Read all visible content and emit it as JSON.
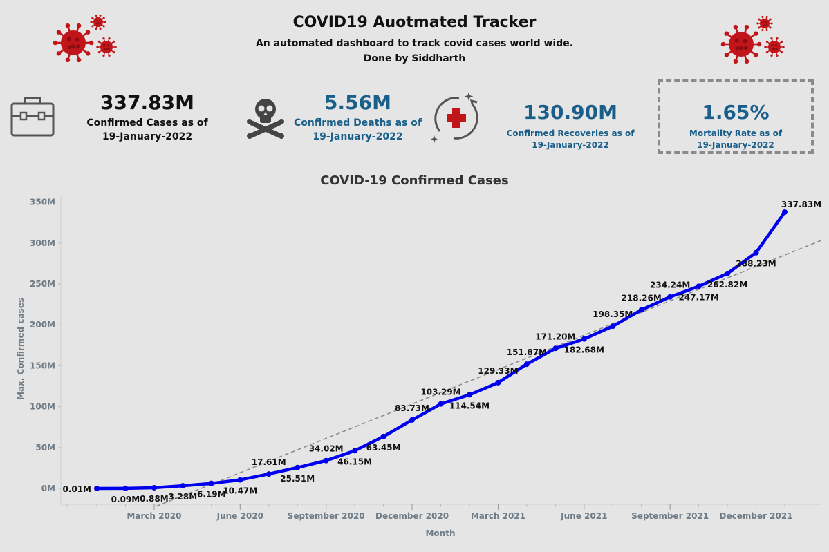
{
  "header": {
    "title": "COVID19 Auotmated Tracker",
    "subtitle": "An automated dashboard to track covid cases world wide.",
    "author": "Done by Siddharth"
  },
  "kpis": {
    "confirmed": {
      "value": "337.83M",
      "label_line1": "Confirmed Cases as of",
      "label_line2": "19-January-2022",
      "icon": "briefcase-icon"
    },
    "deaths": {
      "value": "5.56M",
      "label_line1": "Confirmed Deaths as of",
      "label_line2": "19-January-2022",
      "icon": "skull-crossbones-icon"
    },
    "recoveries": {
      "value": "130.90M",
      "label_line1": "Confirmed Recoveries as of",
      "label_line2": "19-January-2022",
      "icon": "medical-cross-icon"
    },
    "mortality": {
      "value": "1.65%",
      "label_line1": "Mortality Rate as of",
      "label_line2": "19-January-2022"
    }
  },
  "colors": {
    "line": "#0000ee",
    "trend": "#8c8c8c",
    "kpi_blue": "#1a5f8a",
    "virus": "#c0161a"
  },
  "chart_data": {
    "type": "line",
    "title": "COVID-19 Confirmed Cases",
    "xlabel": "Month",
    "ylabel": "Max. Confirmed cases",
    "ylim": [
      0,
      350
    ],
    "y_unit": "M",
    "yticks": [
      "0M",
      "50M",
      "100M",
      "150M",
      "200M",
      "250M",
      "300M",
      "350M"
    ],
    "xticks": [
      "March 2020",
      "June 2020",
      "September 2020",
      "December 2020",
      "March 2021",
      "June 2021",
      "September 2021",
      "December 2021"
    ],
    "trend_line": true,
    "grid": false,
    "series": [
      {
        "x": [
          "January 2020",
          "February 2020",
          "March 2020",
          "April 2020",
          "May 2020",
          "June 2020",
          "July 2020",
          "August 2020",
          "September 2020",
          "October 2020",
          "November 2020",
          "December 2020",
          "January 2021",
          "February 2021",
          "March 2021",
          "April 2021",
          "May 2021",
          "June 2021",
          "July 2021",
          "August 2021",
          "September 2021",
          "October 2021",
          "November 2021",
          "December 2021",
          "January 2022"
        ],
        "values": [
          0.01,
          0.09,
          0.88,
          3.28,
          6.19,
          10.47,
          17.61,
          25.51,
          34.02,
          46.15,
          63.45,
          83.73,
          103.29,
          114.54,
          129.33,
          151.87,
          171.2,
          182.68,
          198.35,
          218.26,
          234.24,
          247.17,
          262.82,
          288.23,
          337.83
        ],
        "labels": [
          "0.01M",
          "0.09M",
          "0.88M",
          "3.28M",
          "6.19M",
          "10.47M",
          "17.61M",
          "25.51M",
          "34.02M",
          "46.15M",
          "63.45M",
          "83.73M",
          "103.29M",
          "114.54M",
          "129.33M",
          "151.87M",
          "171.20M",
          "182.68M",
          "198.35M",
          "218.26M",
          "234.24M",
          "247.17M",
          "262.82M",
          "288.23M",
          "337.83M"
        ]
      }
    ]
  }
}
